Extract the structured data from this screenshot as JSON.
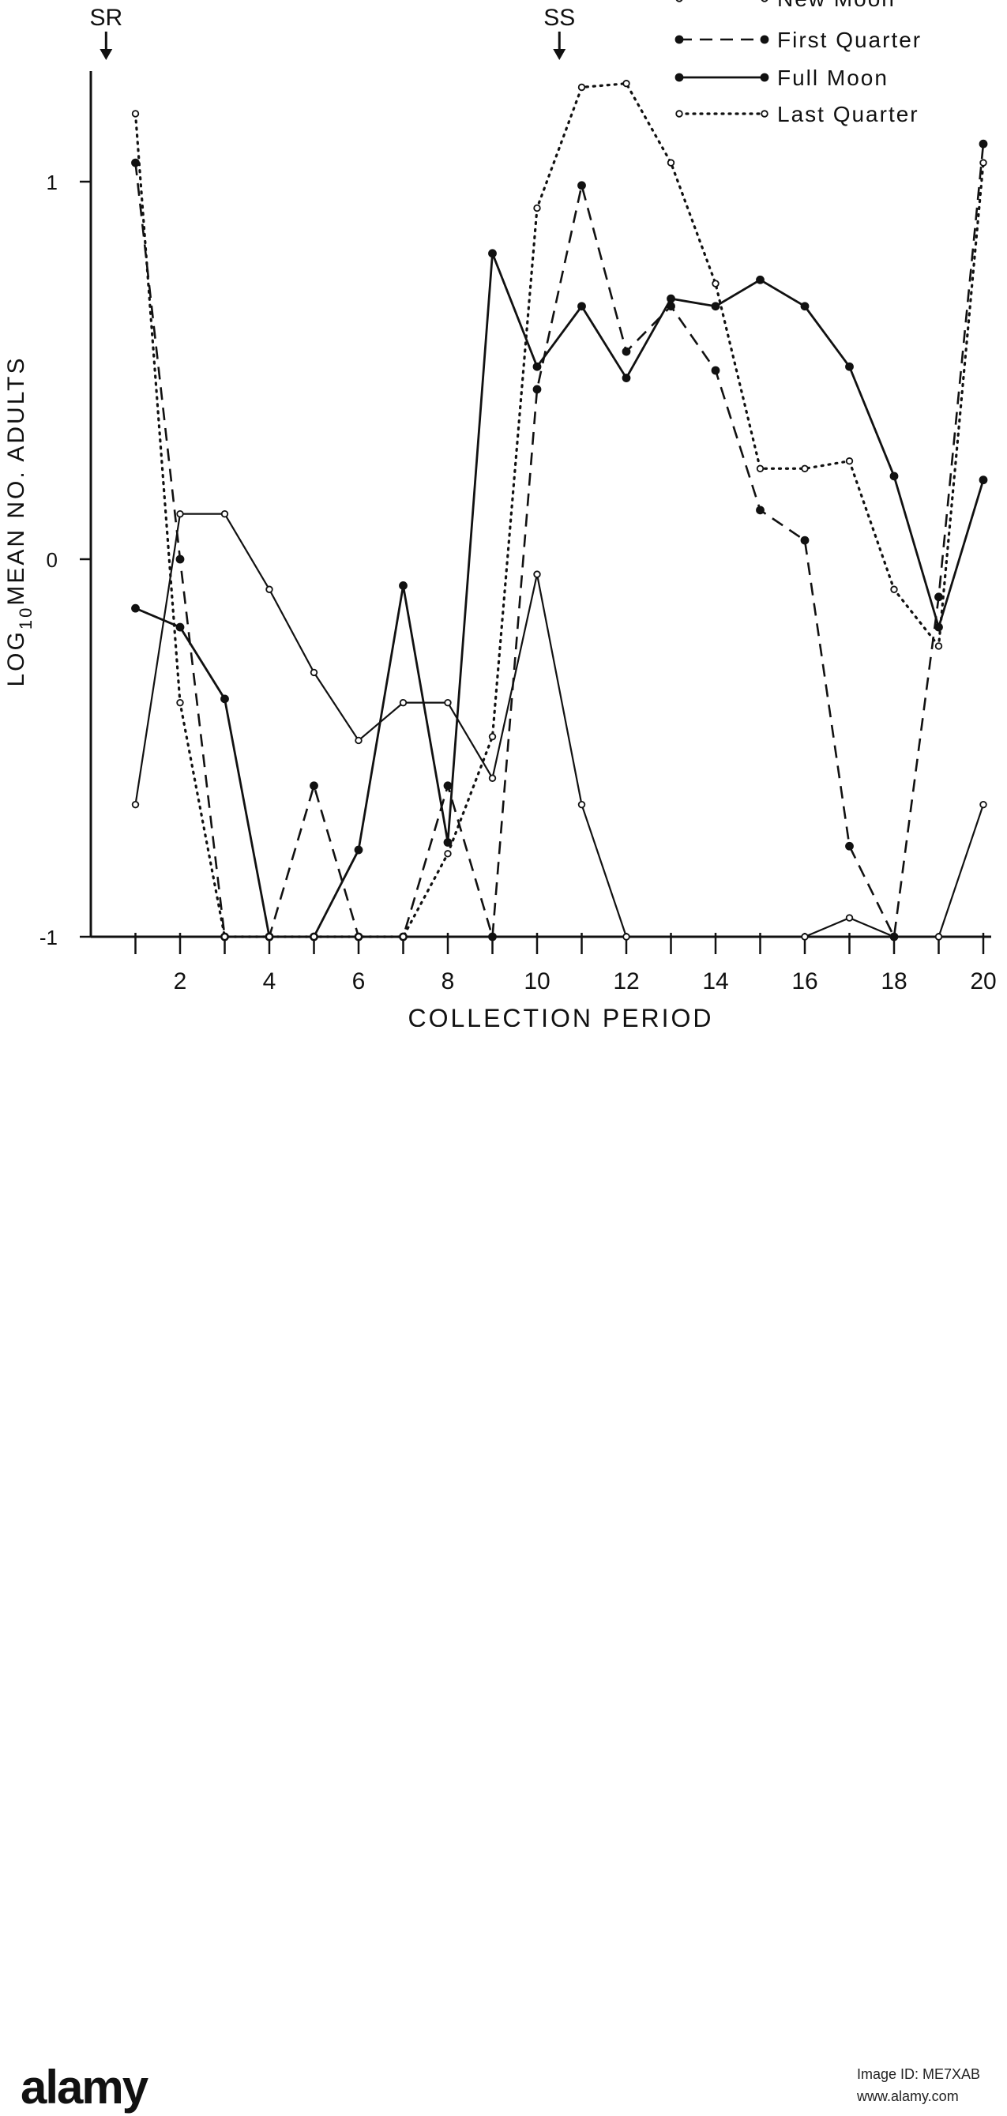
{
  "chart_data": {
    "type": "line",
    "xlabel": "COLLECTION PERIOD",
    "ylabel": "LOG10 MEAN NO. ADULTS",
    "ylabel_parts": {
      "pre": "LOG",
      "sub": "10",
      "post": "MEAN NO. ADULTS"
    },
    "xlim": [
      0,
      20
    ],
    "ylim": [
      -1,
      1.3
    ],
    "xticks": [
      1,
      2,
      3,
      4,
      5,
      6,
      7,
      8,
      9,
      10,
      11,
      12,
      13,
      14,
      15,
      16,
      17,
      18,
      19,
      20
    ],
    "xtick_labels": [
      "2",
      "4",
      "6",
      "8",
      "10",
      "12",
      "14",
      "16",
      "18",
      "20"
    ],
    "xtick_label_positions": [
      2,
      4,
      6,
      8,
      10,
      12,
      14,
      16,
      18,
      20
    ],
    "yticks": [
      -1,
      0,
      1
    ],
    "ytick_labels": [
      "-1",
      "0",
      "1"
    ],
    "annotations": [
      {
        "text": "SR",
        "x": 0.2
      },
      {
        "text": "SS",
        "x": 10.5
      }
    ],
    "legend_position": "top-right",
    "series": [
      {
        "name": "New Moon",
        "style": "solid-open",
        "x": [
          1,
          2,
          3,
          4,
          5,
          6,
          7,
          8,
          9,
          10,
          11,
          12,
          16,
          17,
          18,
          19,
          20
        ],
        "y": [
          -0.65,
          0.12,
          0.12,
          -0.08,
          -0.3,
          -0.48,
          -0.38,
          -0.38,
          -0.58,
          -0.04,
          -0.65,
          -1.0,
          -1.0,
          -0.95,
          -1.0,
          -1.0,
          -0.65
        ]
      },
      {
        "name": "First Quarter",
        "style": "dashed-filled",
        "x": [
          1,
          2,
          3,
          4,
          5,
          6,
          7,
          8,
          9,
          10,
          11,
          12,
          13,
          14,
          15,
          16,
          17,
          18,
          19,
          20
        ],
        "y": [
          1.05,
          0.0,
          -1.0,
          -1.0,
          -0.6,
          -1.0,
          -1.0,
          -0.6,
          -1.0,
          0.45,
          0.99,
          0.55,
          0.67,
          0.5,
          0.13,
          0.05,
          -0.76,
          -1.0,
          -0.1,
          1.1
        ]
      },
      {
        "name": "Full Moon",
        "style": "solid-filled",
        "x": [
          1,
          2,
          3,
          4,
          5,
          6,
          7,
          8,
          9,
          10,
          11,
          12,
          13,
          14,
          15,
          16,
          17,
          18,
          19,
          20
        ],
        "y": [
          -0.13,
          -0.18,
          -0.37,
          -1.0,
          -1.0,
          -0.77,
          -0.07,
          -0.75,
          0.81,
          0.51,
          0.67,
          0.48,
          0.69,
          0.67,
          0.74,
          0.67,
          0.51,
          0.22,
          -0.18,
          0.21
        ]
      },
      {
        "name": "Last Quarter",
        "style": "dotted-open",
        "x": [
          1,
          2,
          3,
          4,
          5,
          6,
          7,
          8,
          9,
          10,
          11,
          12,
          13,
          14,
          15,
          16,
          17,
          18,
          19,
          20
        ],
        "y": [
          1.18,
          -0.38,
          -1.0,
          -1.0,
          -1.0,
          -1.0,
          -1.0,
          -0.78,
          -0.47,
          0.93,
          1.25,
          1.26,
          1.05,
          0.73,
          0.24,
          0.24,
          0.26,
          -0.08,
          -0.23,
          1.05
        ]
      }
    ]
  },
  "footer": {
    "logo_text": "alamy",
    "image_id": "Image ID: ME7XAB",
    "image_url": "www.alamy.com"
  }
}
